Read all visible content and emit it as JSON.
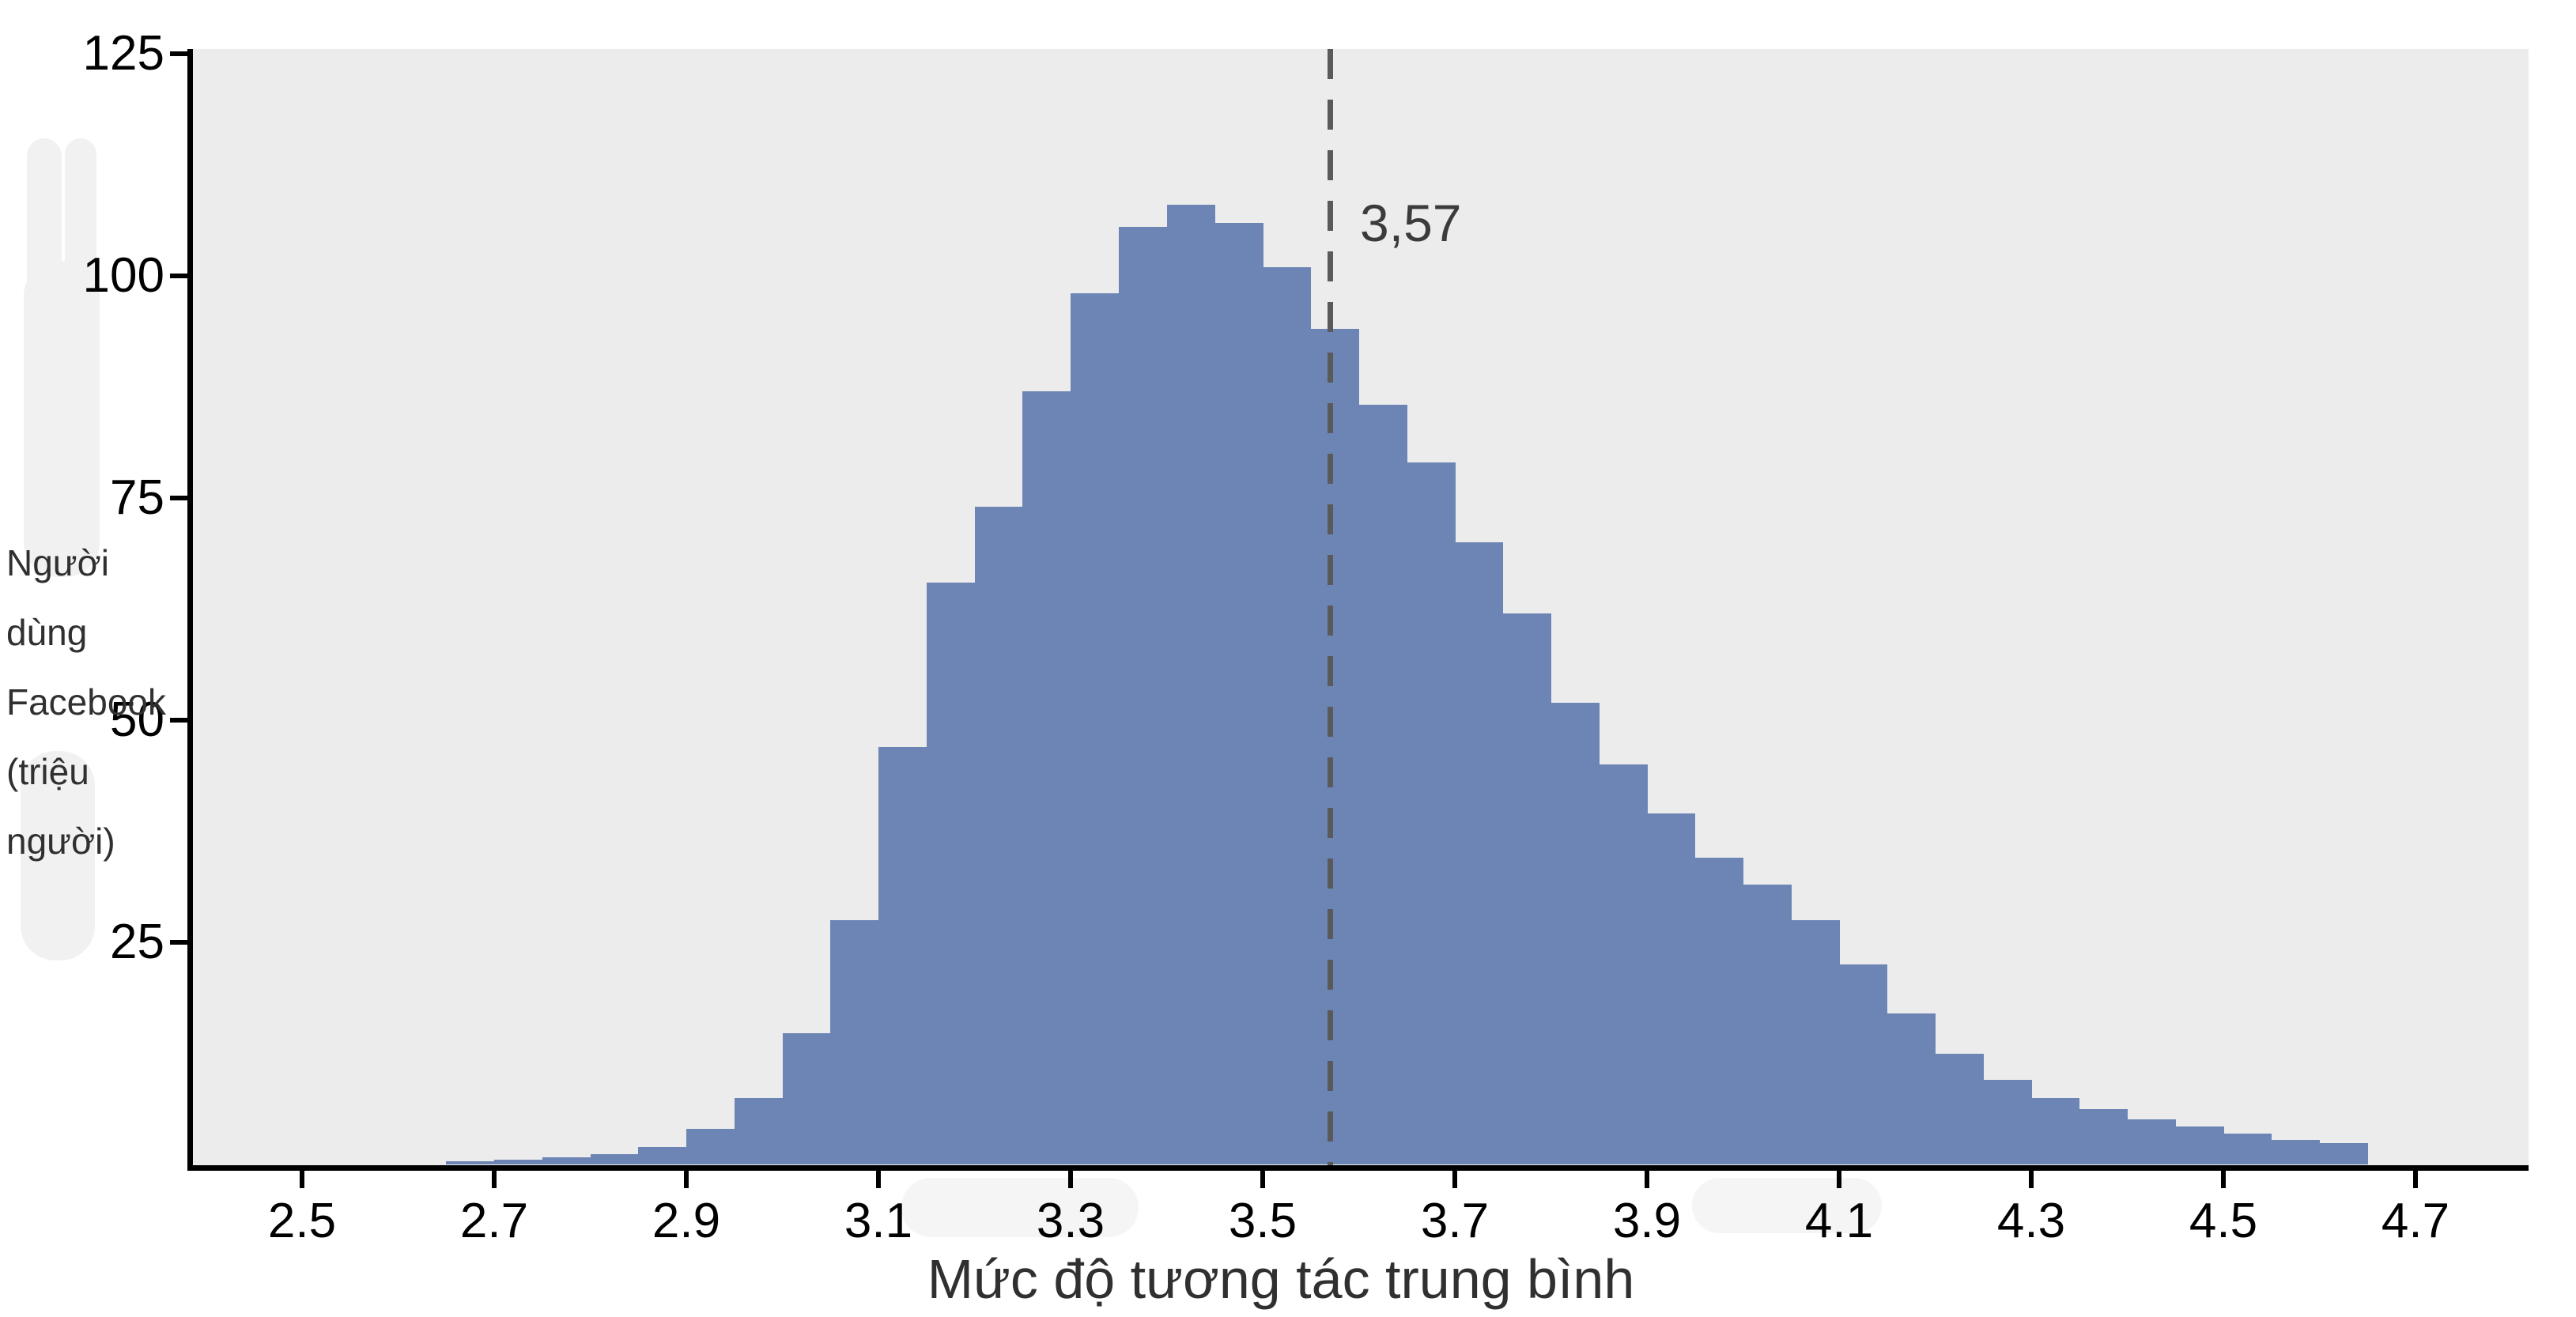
{
  "chart_data": {
    "type": "bar",
    "subtype": "histogram",
    "xlabel": "Mức độ tương tác trung bình",
    "ylabel": "Người dùng Facebook (triệu người)",
    "ylabel_lines": [
      "Người",
      "dùng",
      "Facebook",
      "(triệu",
      "người)"
    ],
    "x_tick_labels": [
      "2.5",
      "2.7",
      "2.9",
      "3.1",
      "3.3",
      "3.5",
      "3.7",
      "3.9",
      "4.1",
      "4.3",
      "4.5",
      "4.7"
    ],
    "x_tick_values": [
      2.5,
      2.7,
      2.9,
      3.1,
      3.3,
      3.5,
      3.7,
      3.9,
      4.1,
      4.3,
      4.5,
      4.7
    ],
    "y_tick_labels": [
      "25",
      "50",
      "75",
      "100",
      "125"
    ],
    "y_tick_values": [
      25,
      50,
      75,
      100,
      125
    ],
    "xlim": [
      2.386,
      4.818
    ],
    "ylim": [
      0,
      126
    ],
    "bin_width": 0.05,
    "bin_start": [
      2.65,
      2.7,
      2.75,
      2.8,
      2.85,
      2.9,
      2.95,
      3.0,
      3.05,
      3.1,
      3.15,
      3.2,
      3.25,
      3.3,
      3.35,
      3.4,
      3.45,
      3.5,
      3.55,
      3.6,
      3.65,
      3.7,
      3.75,
      3.8,
      3.85,
      3.9,
      3.95,
      4.0,
      4.05,
      4.1,
      4.15,
      4.2,
      4.25,
      4.3,
      4.35,
      4.4,
      4.45,
      4.5,
      4.55,
      4.6
    ],
    "counts": [
      0.35,
      0.5,
      0.8,
      1.2,
      2.0,
      4.0,
      7.5,
      14.8,
      27.5,
      47,
      65.5,
      74,
      87,
      98,
      105.5,
      108,
      106,
      101,
      94,
      85.5,
      79,
      70,
      62,
      52,
      45,
      39.5,
      34.5,
      31.5,
      27.5,
      22.5,
      17,
      12.5,
      9.5,
      7.5,
      6.2,
      5.1,
      4.3,
      3.5,
      2.8,
      2.4
    ],
    "mean_line": {
      "x": 3.57,
      "label": "3,57"
    },
    "grid": "off",
    "legend": "none"
  },
  "colors": {
    "bar": "#6d85b5",
    "panel_background": "#ececec",
    "axis": "#000000",
    "mean_dash": "#5a5a5a",
    "mean_label_text": "#3b3b3b",
    "tick_text": "#000000",
    "axis_title_text": "#303030"
  }
}
